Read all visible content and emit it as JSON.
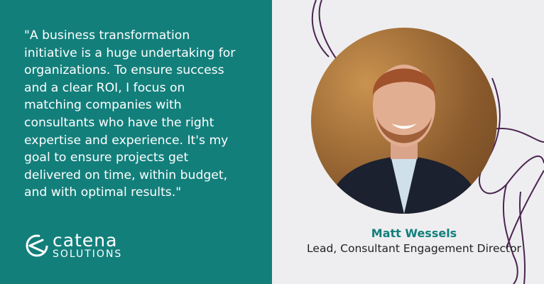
{
  "quote": {
    "lines": [
      "\"A business transformation",
      "initiative is a huge undertaking for",
      "organizations. To ensure success",
      "and a clear ROI, I focus on",
      "matching companies with",
      "consultants who have the right",
      "expertise and experience. It's my",
      "goal to ensure projects get",
      "delivered on time, within budget,",
      "and with optimal results.\""
    ]
  },
  "logo": {
    "main": "catena",
    "sub": "SOLUTIONS"
  },
  "person": {
    "name": "Matt Wessels",
    "title": "Lead, Consultant Engagement Director"
  },
  "colors": {
    "brand_teal": "#137f7b",
    "accent_purple": "#4a2550",
    "background": "#eeeef0"
  }
}
